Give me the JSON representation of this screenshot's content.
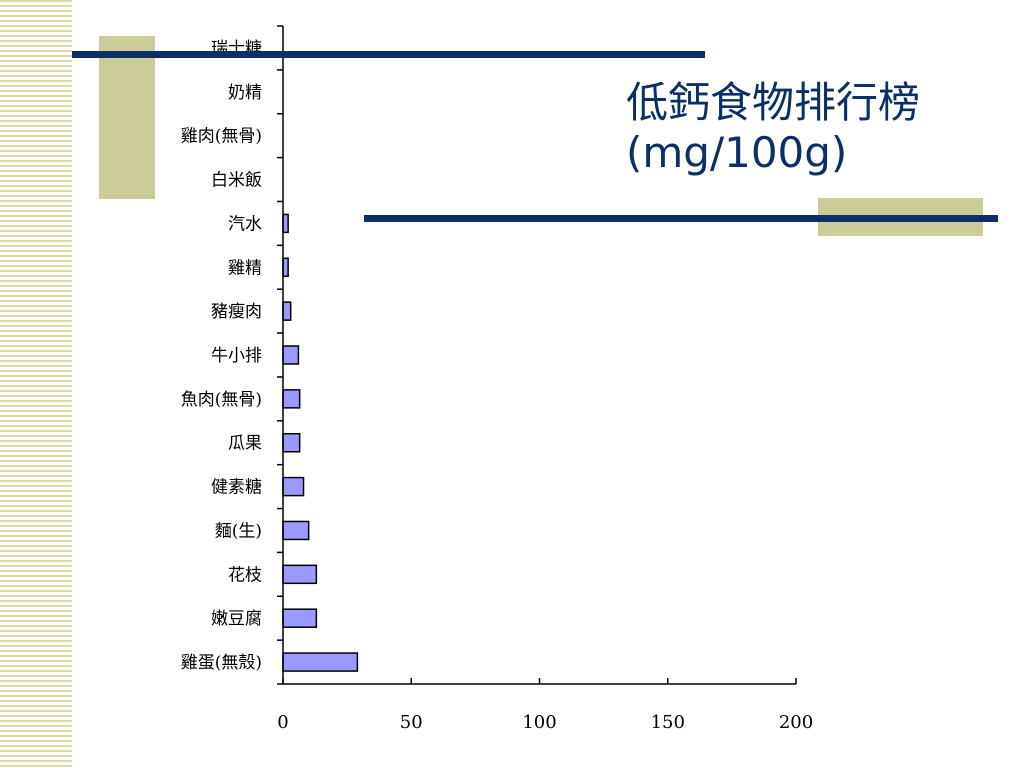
{
  "slide": {
    "title_line1": "低鈣食物排行榜",
    "title_line2": "(mg/100g)",
    "colors": {
      "title": "#0b2f66",
      "rule": "#0b2f66",
      "accent_block": "#cccc99",
      "stripes": "#d9d9a8",
      "bar_fill": "#9999ff",
      "bar_stroke": "#000000"
    }
  },
  "chart_data": {
    "type": "bar",
    "orientation": "horizontal",
    "categories": [
      "瑞士糖",
      "奶精",
      "雞肉(無骨)",
      "白米飯",
      "汽水",
      "雞精",
      "豬瘦肉",
      "牛小排",
      "魚肉(無骨)",
      "瓜果",
      "健素糖",
      "麵(生)",
      "花枝",
      "嫩豆腐",
      "雞蛋(無殼)"
    ],
    "values": [
      0,
      0,
      0,
      0,
      2,
      2,
      3,
      6,
      6.5,
      6.5,
      8,
      10,
      13,
      13,
      29
    ],
    "xlim": [
      0,
      200
    ],
    "xticks": [
      0,
      50,
      100,
      150,
      200
    ],
    "grid": false,
    "legend": "none"
  }
}
